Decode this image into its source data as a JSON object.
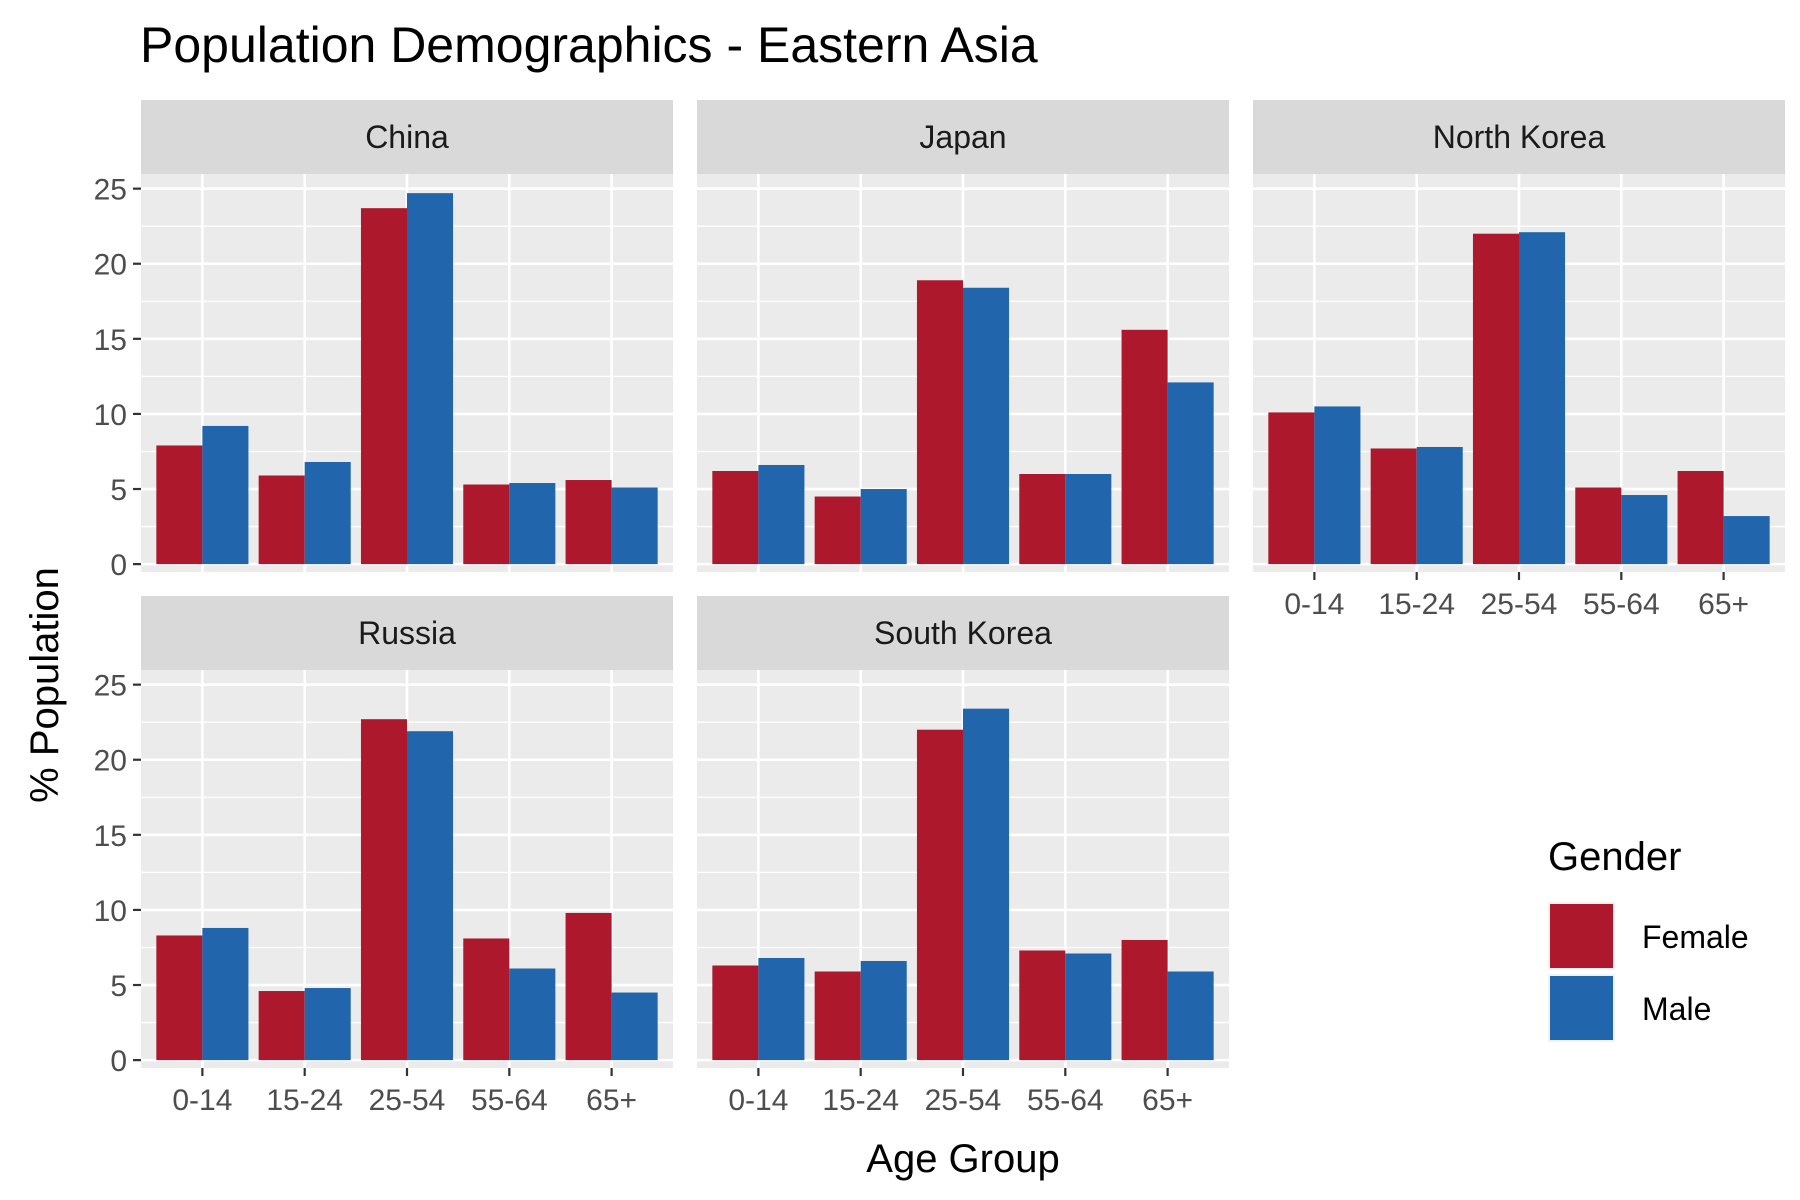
{
  "chart_data": {
    "type": "bar",
    "title": "Population Demographics - Eastern Asia",
    "xlabel": "Age Group",
    "ylabel": "% Population",
    "ylim": [
      0,
      25
    ],
    "y_ticks": [
      "0",
      "5",
      "10",
      "15",
      "20",
      "25"
    ],
    "grid": true,
    "legend": {
      "title": "Gender",
      "placement": "right",
      "entries": [
        {
          "name": "Female",
          "color": "#ae182c"
        },
        {
          "name": "Male",
          "color": "#2166ac"
        }
      ]
    },
    "categories": [
      "0-14",
      "15-24",
      "25-54",
      "55-64",
      "65+"
    ],
    "panels": [
      {
        "name": "China",
        "series": [
          {
            "name": "Female",
            "values": [
              7.9,
              5.9,
              23.7,
              5.3,
              5.6
            ]
          },
          {
            "name": "Male",
            "values": [
              9.2,
              6.8,
              24.7,
              5.4,
              5.1
            ]
          }
        ]
      },
      {
        "name": "Japan",
        "series": [
          {
            "name": "Female",
            "values": [
              6.2,
              4.5,
              18.9,
              6.0,
              15.6
            ]
          },
          {
            "name": "Male",
            "values": [
              6.6,
              5.0,
              18.4,
              6.0,
              12.1
            ]
          }
        ]
      },
      {
        "name": "North Korea",
        "series": [
          {
            "name": "Female",
            "values": [
              10.1,
              7.7,
              22.0,
              5.1,
              6.2
            ]
          },
          {
            "name": "Male",
            "values": [
              10.5,
              7.8,
              22.1,
              4.6,
              3.2
            ]
          }
        ]
      },
      {
        "name": "Russia",
        "series": [
          {
            "name": "Female",
            "values": [
              8.3,
              4.6,
              22.7,
              8.1,
              9.8
            ]
          },
          {
            "name": "Male",
            "values": [
              8.8,
              4.8,
              21.9,
              6.1,
              4.5
            ]
          }
        ]
      },
      {
        "name": "South Korea",
        "series": [
          {
            "name": "Female",
            "values": [
              6.3,
              5.9,
              22.0,
              7.3,
              8.0
            ]
          },
          {
            "name": "Male",
            "values": [
              6.8,
              6.6,
              23.4,
              7.1,
              5.9
            ]
          }
        ]
      }
    ]
  }
}
